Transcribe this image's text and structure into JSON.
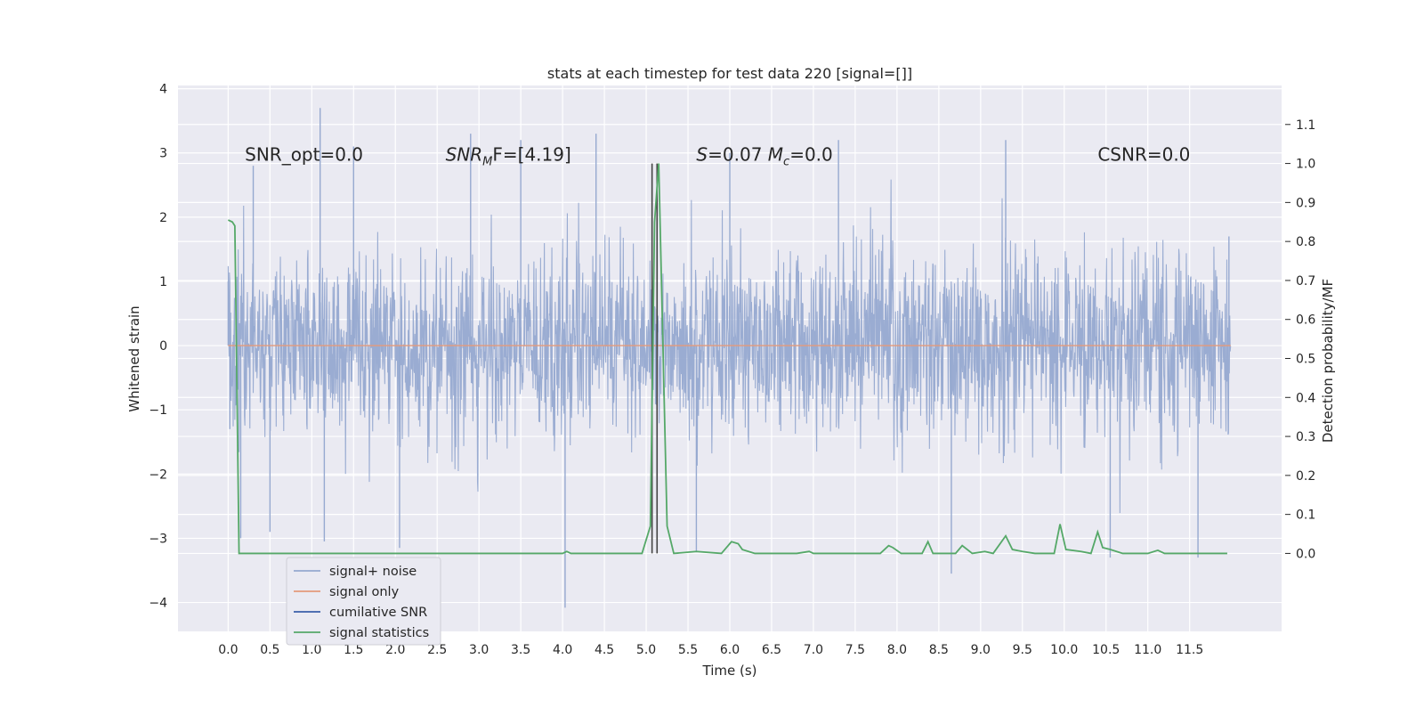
{
  "chart_data": {
    "type": "line",
    "title": "stats at each timestep for test data 220 [signal=[]]",
    "xlabel": "Time (s)",
    "ylabel": "Whitened strain",
    "ylabel_right": "Detection probability/MF",
    "xlim": [
      -0.6,
      12.6
    ],
    "ylim": [
      -4.45,
      4.05
    ],
    "ylim_right": [
      -0.2,
      1.2
    ],
    "x_ticks": [
      0.0,
      0.5,
      1.0,
      1.5,
      2.0,
      2.5,
      3.0,
      3.5,
      4.0,
      4.5,
      5.0,
      5.5,
      6.0,
      6.5,
      7.0,
      7.5,
      8.0,
      8.5,
      9.0,
      9.5,
      10.0,
      10.5,
      11.0,
      11.5
    ],
    "x_tick_labels": [
      "0.0",
      "0.5",
      "1.0",
      "1.5",
      "2.0",
      "2.5",
      "3.0",
      "3.5",
      "4.0",
      "4.5",
      "5.0",
      "5.5",
      "6.0",
      "6.5",
      "7.0",
      "7.5",
      "8.0",
      "8.5",
      "9.0",
      "9.5",
      "10.0",
      "10.5",
      "11.0",
      "11.5"
    ],
    "y_ticks": [
      4,
      3,
      2,
      1,
      0,
      -1,
      -2,
      -3,
      -4
    ],
    "y_tick_labels": [
      "4",
      "3",
      "2",
      "1",
      "0",
      "−1",
      "−2",
      "−3",
      "−4"
    ],
    "y_right_ticks": [
      1.1,
      1.0,
      0.9,
      0.8,
      0.7,
      0.6,
      0.5,
      0.4,
      0.3,
      0.2,
      0.1,
      0.0
    ],
    "y_right_tick_labels": [
      "1.1",
      "1.0",
      "0.9",
      "0.8",
      "0.7",
      "0.6",
      "0.5",
      "0.4",
      "0.3",
      "0.2",
      "0.1",
      "0.0"
    ],
    "grid": true,
    "legend_position": "bottom-left",
    "series": [
      {
        "name": "signal+ noise",
        "axis": "left",
        "color": "#96a9d0",
        "style": "dense noise band approximately between -3.3 and 3.7",
        "points": [
          [
            0.0,
            1.0
          ],
          [
            0.02,
            -1.3
          ],
          [
            0.15,
            -3.0
          ],
          [
            0.3,
            2.8
          ],
          [
            0.5,
            -2.9
          ],
          [
            1.1,
            3.7
          ],
          [
            1.15,
            -3.05
          ],
          [
            1.5,
            3.1
          ],
          [
            2.05,
            -3.15
          ],
          [
            2.9,
            3.3
          ],
          [
            3.5,
            3.2
          ],
          [
            4.03,
            -4.08
          ],
          [
            4.4,
            3.3
          ],
          [
            5.6,
            -3.2
          ],
          [
            6.0,
            3.0
          ],
          [
            7.3,
            3.2
          ],
          [
            8.65,
            -3.55
          ],
          [
            9.3,
            3.2
          ],
          [
            10.55,
            -3.3
          ],
          [
            11.6,
            -3.3
          ],
          [
            11.97,
            1.7
          ],
          [
            11.99,
            0.0
          ]
        ]
      },
      {
        "name": "signal only",
        "axis": "left",
        "color": "#e49a7b",
        "points": [
          [
            0.0,
            0.0
          ],
          [
            11.99,
            0.0
          ]
        ]
      },
      {
        "name": "cumilative SNR",
        "axis": "right",
        "color": "#3a5fa8",
        "points": []
      },
      {
        "name": "signal statistics",
        "axis": "right",
        "color": "#55a868",
        "points": [
          [
            0.0,
            0.855
          ],
          [
            0.05,
            0.85
          ],
          [
            0.08,
            0.84
          ],
          [
            0.13,
            0.0
          ],
          [
            0.3,
            0.0
          ],
          [
            4.0,
            0.0
          ],
          [
            4.05,
            0.005
          ],
          [
            4.1,
            0.0
          ],
          [
            4.95,
            0.0
          ],
          [
            5.05,
            0.07
          ],
          [
            5.1,
            0.85
          ],
          [
            5.15,
            1.0
          ],
          [
            5.25,
            0.07
          ],
          [
            5.33,
            0.0
          ],
          [
            5.6,
            0.005
          ],
          [
            5.9,
            0.0
          ],
          [
            6.02,
            0.03
          ],
          [
            6.1,
            0.025
          ],
          [
            6.15,
            0.01
          ],
          [
            6.3,
            0.0
          ],
          [
            6.8,
            0.0
          ],
          [
            6.95,
            0.005
          ],
          [
            7.0,
            0.0
          ],
          [
            7.8,
            0.0
          ],
          [
            7.9,
            0.02
          ],
          [
            7.95,
            0.015
          ],
          [
            8.05,
            0.0
          ],
          [
            8.3,
            0.0
          ],
          [
            8.37,
            0.03
          ],
          [
            8.43,
            0.0
          ],
          [
            8.7,
            0.0
          ],
          [
            8.78,
            0.02
          ],
          [
            8.9,
            0.0
          ],
          [
            9.05,
            0.005
          ],
          [
            9.15,
            0.0
          ],
          [
            9.3,
            0.045
          ],
          [
            9.38,
            0.01
          ],
          [
            9.5,
            0.005
          ],
          [
            9.65,
            0.0
          ],
          [
            9.88,
            0.0
          ],
          [
            9.95,
            0.075
          ],
          [
            10.02,
            0.01
          ],
          [
            10.2,
            0.005
          ],
          [
            10.32,
            0.0
          ],
          [
            10.4,
            0.055
          ],
          [
            10.46,
            0.015
          ],
          [
            10.55,
            0.01
          ],
          [
            10.7,
            0.0
          ],
          [
            11.0,
            0.0
          ],
          [
            11.12,
            0.008
          ],
          [
            11.2,
            0.0
          ],
          [
            11.95,
            0.0
          ]
        ]
      }
    ],
    "vlines": [
      {
        "x": 5.07,
        "ymin_right": 0.0,
        "ymax_right": 1.0,
        "color": "#444444"
      },
      {
        "x": 5.13,
        "ymin_right": 0.0,
        "ymax_right": 1.0,
        "color": "#444444"
      }
    ],
    "annotations": [
      {
        "type": "text",
        "x": 0.2,
        "y": 2.88,
        "text": "SNR_opt=0.0"
      },
      {
        "type": "mathSNR",
        "x": 2.6,
        "y": 2.88,
        "base": "SNR",
        "sub": "M",
        "rest": "F=[4.19]"
      },
      {
        "type": "mathS",
        "x": 5.6,
        "y": 2.88,
        "s": "S",
        "s_rest": "=0.07",
        "m": "M",
        "m_sub": "c",
        "m_rest": "=0.0"
      },
      {
        "type": "text",
        "x": 10.4,
        "y": 2.88,
        "text": "CSNR=0.0"
      }
    ]
  }
}
